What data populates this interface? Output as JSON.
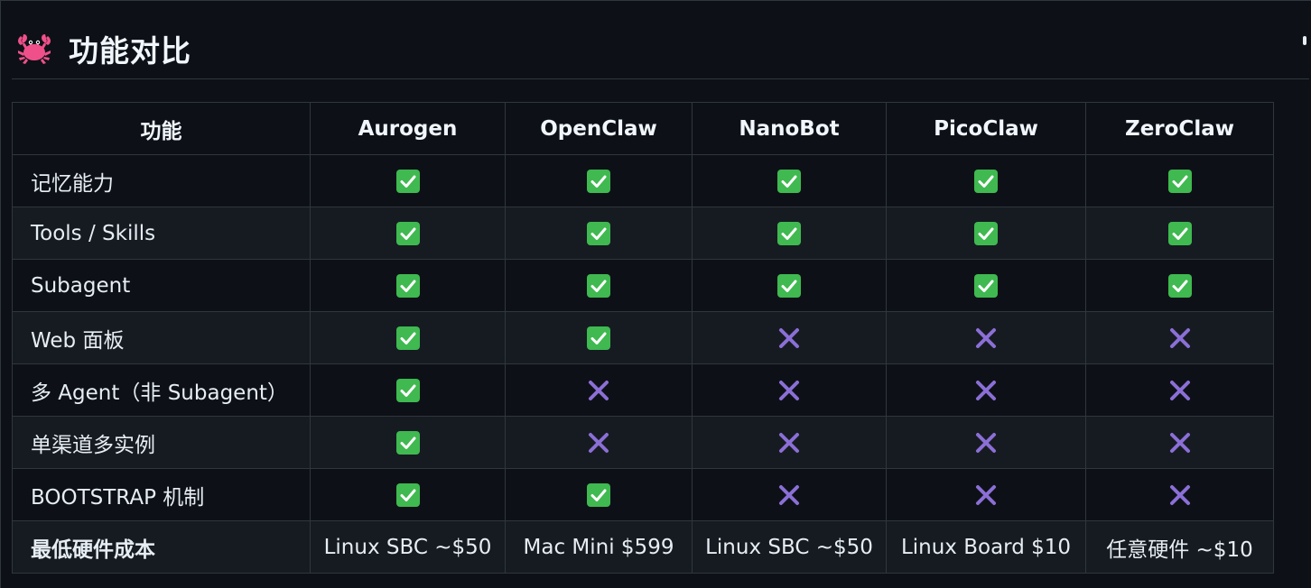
{
  "heading": {
    "title": "功能对比",
    "icon": "crab-icon"
  },
  "colors": {
    "background": "#0d1117",
    "row_alt": "#161b22",
    "border": "#30363d",
    "check_green": "#3fb950",
    "cross_purple": "#8b6fd6",
    "crab_pink": "#f0508a"
  },
  "table": {
    "headers": [
      "功能",
      "Aurogen",
      "OpenClaw",
      "NanoBot",
      "PicoClaw",
      "ZeroClaw"
    ],
    "rows": [
      {
        "feature": "记忆能力",
        "values": [
          "check-icon",
          "check-icon",
          "check-icon",
          "check-icon",
          "check-icon"
        ]
      },
      {
        "feature": "Tools / Skills",
        "values": [
          "check-icon",
          "check-icon",
          "check-icon",
          "check-icon",
          "check-icon"
        ]
      },
      {
        "feature": "Subagent",
        "values": [
          "check-icon",
          "check-icon",
          "check-icon",
          "check-icon",
          "check-icon"
        ]
      },
      {
        "feature": "Web 面板",
        "values": [
          "check-icon",
          "check-icon",
          "cross-icon",
          "cross-icon",
          "cross-icon"
        ]
      },
      {
        "feature": "多 Agent（非 Subagent）",
        "values": [
          "check-icon",
          "cross-icon",
          "cross-icon",
          "cross-icon",
          "cross-icon"
        ]
      },
      {
        "feature": "单渠道多实例",
        "values": [
          "check-icon",
          "cross-icon",
          "cross-icon",
          "cross-icon",
          "cross-icon"
        ]
      },
      {
        "feature": "BOOTSTRAP 机制",
        "values": [
          "check-icon",
          "check-icon",
          "cross-icon",
          "cross-icon",
          "cross-icon"
        ]
      }
    ],
    "cost_row": {
      "feature": "最低硬件成本",
      "values": [
        "Linux SBC ~$50",
        "Mac Mini $599",
        "Linux SBC ~$50",
        "Linux Board $10",
        "任意硬件 ~$10"
      ]
    }
  }
}
